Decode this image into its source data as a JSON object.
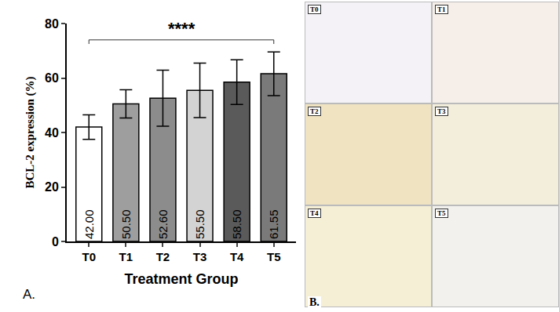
{
  "chart_data": {
    "type": "bar",
    "categories": [
      "T0",
      "T1",
      "T2",
      "T3",
      "T4",
      "T5"
    ],
    "values": [
      42.0,
      50.5,
      52.6,
      55.5,
      58.5,
      61.55
    ],
    "value_labels": [
      "42.00",
      "50.50",
      "52.60",
      "55.50",
      "58.50",
      "61.55"
    ],
    "errors": [
      4.5,
      5.2,
      10.3,
      10.0,
      8.2,
      8.0
    ],
    "colors": [
      "#ffffff",
      "#9e9e9e",
      "#8c8c8c",
      "#d3d3d3",
      "#5a5a5a",
      "#7a7a7a"
    ],
    "data_labels": true,
    "x_label": "Treatment Group",
    "y_label": "BCL-2 expression (%)",
    "ylim": [
      0,
      80
    ],
    "yticks": [
      0,
      20,
      40,
      60,
      80
    ],
    "grid": false,
    "significance": {
      "text": "****",
      "from": "T0",
      "to": "T5",
      "y": 74
    },
    "panel_label": "A."
  },
  "panel_b": {
    "label": "B.",
    "images": [
      "T0",
      "T1",
      "T2",
      "T3",
      "T4",
      "T5"
    ]
  }
}
